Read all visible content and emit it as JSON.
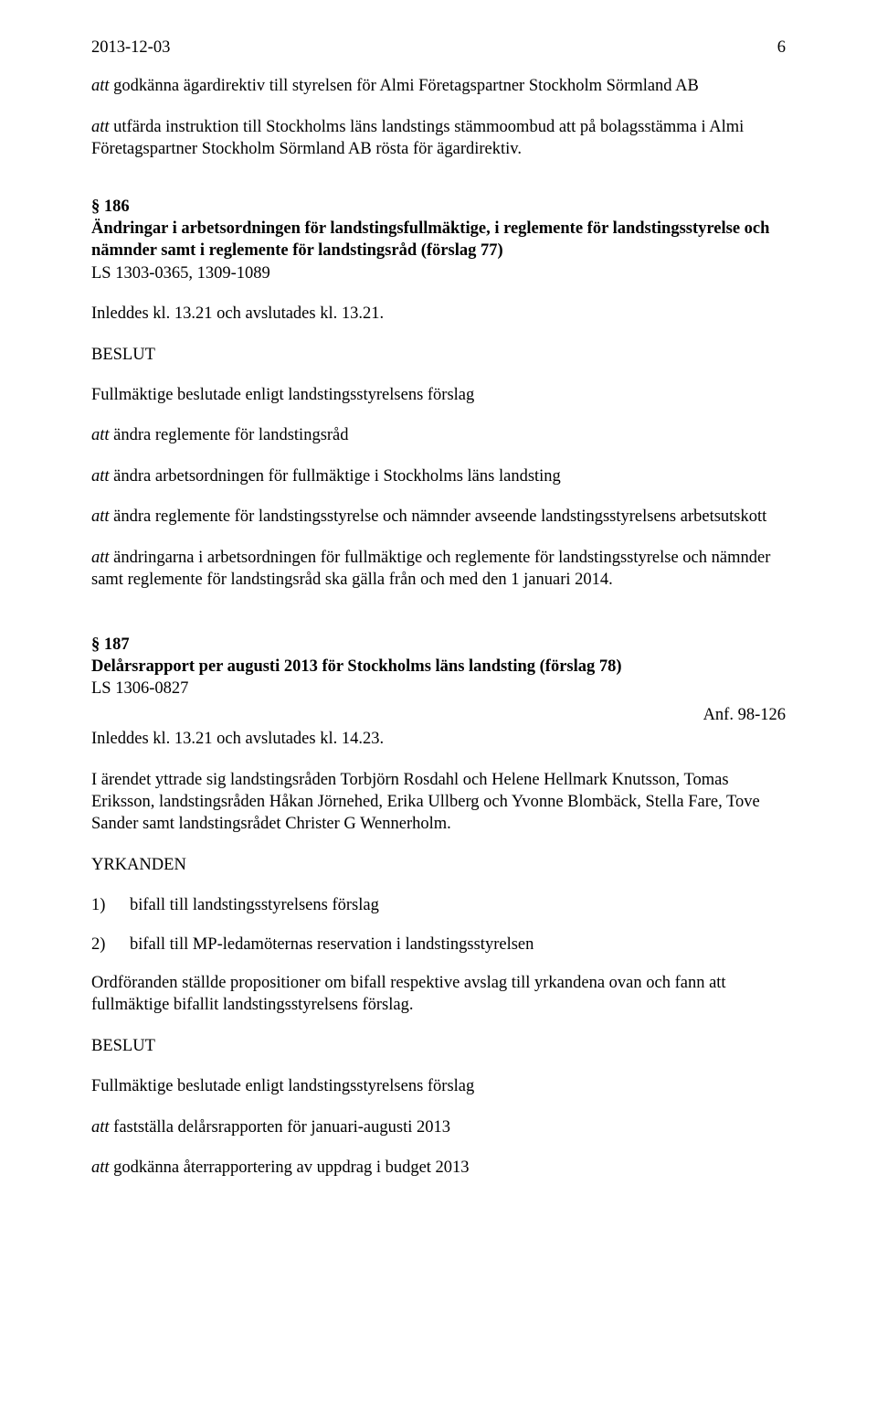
{
  "header": {
    "date": "2013-12-03",
    "page_number": "6"
  },
  "intro": {
    "p1": {
      "att": "att",
      "text": " godkänna ägardirektiv till styrelsen för Almi Företagspartner Stockholm Sörmland AB"
    },
    "p2": {
      "att": "att",
      "text": " utfärda instruktion till Stockholms läns landstings stämmoombud att på bolagsstämma i Almi Företagspartner Stockholm Sörmland AB rösta för ägardirektiv."
    }
  },
  "s186": {
    "num": "§ 186",
    "title": "Ändringar i arbetsordningen för landstingsfullmäktige, i reglemente för landstingsstyrelse och nämnder samt i reglemente för landstingsråd (förslag 77)",
    "ls": "LS 1303-0365, 1309-1089",
    "timing": "Inleddes kl. 13.21 och avslutades kl. 13.21.",
    "beslut": "BESLUT",
    "decided": "Fullmäktige beslutade enligt landstingsstyrelsens förslag",
    "att1": {
      "att": "att",
      "text": " ändra reglemente för landstingsråd"
    },
    "att2": {
      "att": "att",
      "text": " ändra arbetsordningen för fullmäktige i Stockholms läns landsting"
    },
    "att3": {
      "att": "att",
      "text": " ändra reglemente för landstingsstyrelse och nämnder avseende landstingsstyrelsens arbetsutskott"
    },
    "att4": {
      "att": "att",
      "text": " ändringarna i arbetsordningen för fullmäktige och reglemente för landstingsstyrelse och nämnder samt reglemente för landstingsråd ska gälla från och med den 1 januari 2014."
    }
  },
  "s187": {
    "num": "§ 187",
    "title": "Delårsrapport per augusti 2013 för Stockholms läns landsting (förslag 78)",
    "ls": "LS 1306-0827",
    "anf": "Anf. 98-126",
    "timing": "Inleddes kl. 13.21 och avslutades kl. 14.23.",
    "speakers": "I ärendet yttrade sig landstingsråden Torbjörn Rosdahl och Helene Hellmark Knutsson, Tomas Eriksson, landstingsråden Håkan Jörnehed, Erika Ullberg och Yvonne Blombäck, Stella Fare, Tove Sander samt landstingsrådet Christer G Wennerholm.",
    "yrk_label": "YRKANDEN",
    "yrk1_num": "1)",
    "yrk1_text": "bifall till landstingsstyrelsens förslag",
    "yrk2_num": "2)",
    "yrk2_text": "bifall till MP-ledamöternas reservation i landstingsstyrelsen",
    "proposition": "Ordföranden ställde propositioner om bifall respektive avslag till yrkandena ovan och fann att fullmäktige bifallit landstingsstyrelsens förslag.",
    "beslut": "BESLUT",
    "decided": "Fullmäktige beslutade enligt landstingsstyrelsens förslag",
    "att1": {
      "att": "att",
      "text": " fastställa delårsrapporten för januari-augusti 2013"
    },
    "att2": {
      "att": "att",
      "text": " godkänna återrapportering av uppdrag i budget 2013"
    }
  }
}
